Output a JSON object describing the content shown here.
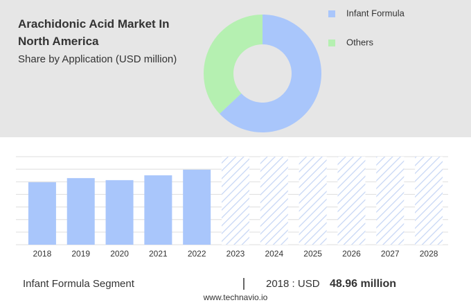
{
  "chart_data": [
    {
      "type": "pie",
      "title": "Arachidonic Acid Market In North America",
      "subtitle": "Share by Application (USD million)",
      "categories": [
        "Infant Formula",
        "Others"
      ],
      "values": [
        63,
        37
      ],
      "colors": [
        "#a9c6fb",
        "#b5f0b1"
      ],
      "donut": true
    },
    {
      "type": "bar",
      "categories": [
        "2018",
        "2019",
        "2020",
        "2021",
        "2022",
        "2023",
        "2024",
        "2025",
        "2026",
        "2027",
        "2028"
      ],
      "values": [
        48.96,
        52.2,
        50.6,
        54.4,
        58.8,
        null,
        null,
        null,
        null,
        null,
        null
      ],
      "color": "#a9c6fb",
      "ylim": [
        0,
        69
      ],
      "grid": true
    }
  ],
  "footer": {
    "segment": "Infant Formula Segment",
    "prefix": "2018 : USD",
    "value": "48.96 million"
  },
  "source": "www.technavio.io"
}
